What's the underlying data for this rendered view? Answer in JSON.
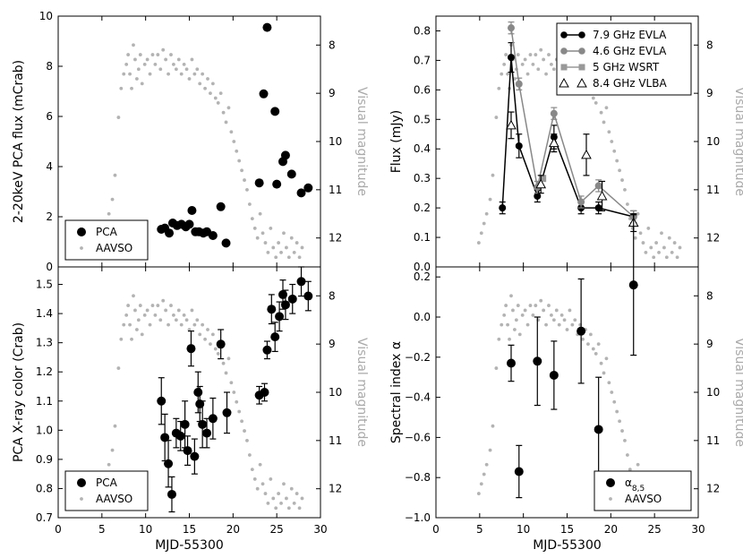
{
  "colors": {
    "aavso": "#b3b3b3",
    "vis_label": "#aaaaaa",
    "evla46": "#888888",
    "wsrt": "#999999",
    "black": "#000000"
  },
  "chart_data": [
    {
      "id": "top-left",
      "type": "scatter",
      "xlabel": "",
      "ylabel": "2-20keV PCA flux (mCrab)",
      "y2label": "Visual magnitude",
      "xlim": [
        0,
        30
      ],
      "ylim": [
        0,
        10
      ],
      "y2lim": [
        12.6,
        7.4
      ],
      "xticks": [
        0,
        5,
        10,
        15,
        20,
        25,
        30
      ],
      "xtick_labels_shown": false,
      "yticks": [
        0,
        2,
        4,
        6,
        8,
        10
      ],
      "y2ticks": [
        8,
        9,
        10,
        11,
        12
      ],
      "legend": {
        "position": "lower-left",
        "entries": [
          "PCA",
          "AAVSO"
        ]
      },
      "series": [
        {
          "name": "PCA",
          "marker": "circle",
          "x": [
            11.8,
            12.2,
            12.7,
            13.1,
            13.6,
            14.1,
            14.6,
            15.0,
            15.3,
            15.7,
            16.1,
            16.6,
            17.0,
            17.7,
            18.6,
            19.2,
            23.0,
            23.5,
            23.9,
            24.8,
            25.0,
            25.7,
            26.0,
            26.7,
            27.8,
            28.6
          ],
          "y": [
            1.5,
            1.55,
            1.35,
            1.75,
            1.65,
            1.7,
            1.6,
            1.7,
            2.25,
            1.4,
            1.4,
            1.35,
            1.4,
            1.25,
            2.4,
            0.95,
            3.35,
            6.9,
            9.55,
            6.2,
            3.3,
            4.2,
            4.45,
            3.7,
            2.95,
            3.15
          ]
        },
        {
          "name": "AAVSO",
          "marker": "small-dot",
          "axis": "right",
          "data_ref": "aavso_magnitudes"
        }
      ]
    },
    {
      "id": "top-right",
      "type": "line",
      "xlabel": "",
      "ylabel": "Flux (mJy)",
      "y2label": "Visual magnitude",
      "xlim": [
        0,
        30
      ],
      "ylim": [
        0,
        0.85
      ],
      "y2lim": [
        12.6,
        7.4
      ],
      "xticks": [
        0,
        5,
        10,
        15,
        20,
        25,
        30
      ],
      "xtick_labels_shown": false,
      "yticks": [
        0.0,
        0.1,
        0.2,
        0.3,
        0.4,
        0.5,
        0.6,
        0.7,
        0.8
      ],
      "y2ticks": [
        8,
        9,
        10,
        11,
        12
      ],
      "legend": {
        "position": "top-right",
        "entries": [
          "7.9 GHz EVLA",
          "4.6 GHz EVLA",
          "5 GHz WSRT",
          "8.4 GHz VLBA"
        ]
      },
      "series": [
        {
          "name": "7.9 GHz EVLA",
          "marker": "circle",
          "x": [
            7.6,
            8.6,
            9.5,
            11.6,
            13.5,
            16.6,
            18.6,
            22.6
          ],
          "y": [
            0.2,
            0.71,
            0.41,
            0.24,
            0.44,
            0.2,
            0.2,
            0.17
          ],
          "err": [
            0.02,
            0.05,
            0.04,
            0.02,
            0.04,
            0.02,
            0.02,
            0.02
          ]
        },
        {
          "name": "4.6 GHz EVLA",
          "marker": "circle",
          "x": [
            8.6,
            9.5,
            11.6,
            13.5,
            16.6,
            18.6,
            22.6
          ],
          "y": [
            0.81,
            0.62,
            0.27,
            0.52,
            0.22,
            0.275,
            0.17
          ],
          "err": [
            0.02,
            0.02,
            0.02,
            0.02,
            0.02,
            0.02,
            0.02
          ]
        },
        {
          "name": "5 GHz WSRT",
          "marker": "square",
          "x": [
            12.2
          ],
          "y": [
            0.3
          ],
          "err": [
            0.0
          ]
        },
        {
          "name": "8.4 GHz VLBA",
          "marker": "open-triangle",
          "x": [
            8.6,
            12.0,
            13.5,
            17.2,
            19.0,
            22.6
          ],
          "y": [
            0.48,
            0.28,
            0.42,
            0.38,
            0.24,
            0.15
          ],
          "err": [
            0.045,
            0.03,
            0.03,
            0.07,
            0.05,
            0.03
          ]
        },
        {
          "name": "AAVSO",
          "marker": "small-dot",
          "axis": "right",
          "data_ref": "aavso_magnitudes"
        }
      ]
    },
    {
      "id": "bottom-left",
      "type": "scatter",
      "xlabel": "MJD-55300",
      "ylabel": "PCA X-ray color (Crab)",
      "y2label": "Visual magnitude",
      "xlim": [
        0,
        30
      ],
      "ylim": [
        0.7,
        1.56
      ],
      "y2lim": [
        12.6,
        7.4
      ],
      "xticks": [
        0,
        5,
        10,
        15,
        20,
        25,
        30
      ],
      "yticks": [
        0.7,
        0.8,
        0.9,
        1.0,
        1.1,
        1.2,
        1.3,
        1.4,
        1.5
      ],
      "y2ticks": [
        8,
        9,
        10,
        11,
        12
      ],
      "legend": {
        "position": "lower-left",
        "entries": [
          "PCA",
          "AAVSO"
        ]
      },
      "series": [
        {
          "name": "PCA",
          "marker": "circle",
          "x": [
            11.8,
            12.2,
            12.6,
            13.0,
            13.5,
            14.0,
            14.5,
            14.8,
            15.2,
            15.6,
            16.0,
            16.2,
            16.5,
            17.0,
            17.7,
            18.6,
            19.3,
            23.0,
            23.6,
            23.9,
            24.4,
            24.8,
            25.3,
            25.7,
            26.0,
            26.8,
            27.8,
            28.6
          ],
          "y": [
            1.1,
            0.975,
            0.885,
            0.78,
            0.99,
            0.98,
            1.02,
            0.93,
            1.28,
            0.91,
            1.13,
            1.09,
            1.02,
            0.99,
            1.04,
            1.295,
            1.06,
            1.12,
            1.13,
            1.275,
            1.415,
            1.32,
            1.39,
            1.465,
            1.43,
            1.45,
            1.51,
            1.46
          ],
          "err": [
            0.08,
            0.08,
            0.08,
            0.06,
            0.05,
            0.05,
            0.08,
            0.05,
            0.06,
            0.06,
            0.07,
            0.06,
            0.08,
            0.05,
            0.07,
            0.05,
            0.07,
            0.03,
            0.03,
            0.03,
            0.05,
            0.05,
            0.05,
            0.05,
            0.05,
            0.05,
            0.05,
            0.05
          ]
        },
        {
          "name": "AAVSO",
          "marker": "small-dot",
          "axis": "right",
          "data_ref": "aavso_magnitudes"
        }
      ]
    },
    {
      "id": "bottom-right",
      "type": "scatter",
      "xlabel": "MJD-55300",
      "ylabel": "Spectral index α",
      "y2label": "Visual magnitude",
      "xlim": [
        0,
        30
      ],
      "ylim": [
        -1.0,
        0.25
      ],
      "y2lim": [
        12.6,
        7.4
      ],
      "xticks": [
        0,
        5,
        10,
        15,
        20,
        25,
        30
      ],
      "yticks": [
        -1.0,
        -0.8,
        -0.6,
        -0.4,
        -0.2,
        0.0,
        0.2
      ],
      "y2ticks": [
        8,
        9,
        10,
        11,
        12
      ],
      "legend": {
        "position": "lower-right",
        "entries": [
          "α8,5",
          "AAVSO"
        ]
      },
      "series": [
        {
          "name": "α8,5",
          "marker": "circle",
          "x": [
            8.6,
            9.5,
            11.6,
            13.5,
            16.6,
            18.6,
            22.6
          ],
          "y": [
            -0.23,
            -0.77,
            -0.22,
            -0.29,
            -0.07,
            -0.56,
            0.16
          ],
          "err": [
            0.09,
            0.13,
            0.22,
            0.17,
            0.26,
            0.26,
            0.35
          ]
        },
        {
          "name": "AAVSO",
          "marker": "small-dot",
          "axis": "right",
          "data_ref": "aavso_magnitudes"
        }
      ]
    }
  ],
  "aavso_magnitudes": {
    "x": [
      4.9,
      5.2,
      5.5,
      5.8,
      6.2,
      6.5,
      6.9,
      7.2,
      7.5,
      7.8,
      8.0,
      8.2,
      8.4,
      8.6,
      8.8,
      9.0,
      9.2,
      9.4,
      9.6,
      9.9,
      10.2,
      10.5,
      10.8,
      11.1,
      11.4,
      11.7,
      12.0,
      12.3,
      12.6,
      12.9,
      13.2,
      13.5,
      13.8,
      14.1,
      14.4,
      14.7,
      15.0,
      15.3,
      15.6,
      15.9,
      16.2,
      16.5,
      16.8,
      17.1,
      17.4,
      17.7,
      18.0,
      18.3,
      18.6,
      18.9,
      19.2,
      19.5,
      19.8,
      20.1,
      20.4,
      20.7,
      21.0,
      21.3,
      21.6,
      21.9,
      22.2,
      22.5,
      22.8,
      23.1,
      23.4,
      23.7,
      24.0,
      24.3,
      24.6,
      24.9,
      25.2,
      25.5,
      25.8,
      26.1,
      26.4,
      26.7,
      27.0,
      27.3,
      27.6,
      27.9
    ],
    "y": [
      12.1,
      11.9,
      11.7,
      11.5,
      11.2,
      10.7,
      9.5,
      8.9,
      8.6,
      8.4,
      8.2,
      8.6,
      8.9,
      8.0,
      8.3,
      8.7,
      8.5,
      8.2,
      8.8,
      8.4,
      8.3,
      8.6,
      8.2,
      8.4,
      8.2,
      8.5,
      8.1,
      8.3,
      8.6,
      8.2,
      8.4,
      8.5,
      8.3,
      8.6,
      8.4,
      8.5,
      8.7,
      8.3,
      8.6,
      8.5,
      8.8,
      8.6,
      8.9,
      8.7,
      9.0,
      8.8,
      9.1,
      9.2,
      9.0,
      9.4,
      9.6,
      9.3,
      9.8,
      10.0,
      10.2,
      10.4,
      10.6,
      10.8,
      11.0,
      11.3,
      11.6,
      11.8,
      12.0,
      11.5,
      11.9,
      12.1,
      12.3,
      11.8,
      12.2,
      12.4,
      12.1,
      12.3,
      11.9,
      12.2,
      12.4,
      12.0,
      12.3,
      12.1,
      12.4,
      12.2
    ]
  }
}
